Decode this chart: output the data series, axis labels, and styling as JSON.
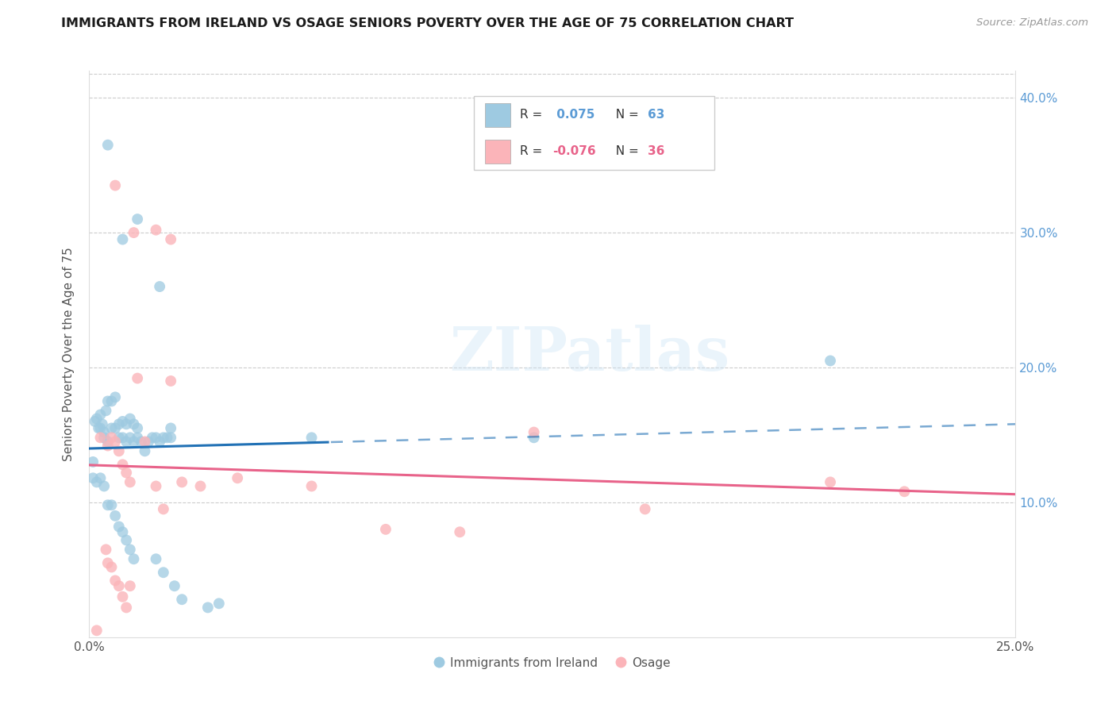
{
  "title": "IMMIGRANTS FROM IRELAND VS OSAGE SENIORS POVERTY OVER THE AGE OF 75 CORRELATION CHART",
  "source": "Source: ZipAtlas.com",
  "ylabel": "Seniors Poverty Over the Age of 75",
  "xmin": 0.0,
  "xmax": 0.25,
  "ymin": 0.0,
  "ymax": 0.42,
  "yticks": [
    0.1,
    0.2,
    0.3,
    0.4
  ],
  "ytick_labels": [
    "10.0%",
    "20.0%",
    "30.0%",
    "40.0%"
  ],
  "xticks": [
    0.0,
    0.05,
    0.1,
    0.15,
    0.2,
    0.25
  ],
  "xtick_labels": [
    "0.0%",
    "",
    "",
    "",
    "",
    "25.0%"
  ],
  "legend_label1": "Immigrants from Ireland",
  "legend_label2": "Osage",
  "blue_color": "#9ecae1",
  "pink_color": "#fbb4b9",
  "blue_line_color": "#2171b5",
  "pink_line_color": "#e8638a",
  "text_color": "#555555",
  "right_axis_color": "#5b9bd5",
  "watermark": "ZIPatlas",
  "blue_x": [
    0.005,
    0.009,
    0.013,
    0.019,
    0.001,
    0.0015,
    0.002,
    0.0025,
    0.003,
    0.003,
    0.0035,
    0.004,
    0.004,
    0.0045,
    0.005,
    0.005,
    0.006,
    0.006,
    0.007,
    0.007,
    0.008,
    0.008,
    0.009,
    0.009,
    0.01,
    0.01,
    0.011,
    0.011,
    0.012,
    0.012,
    0.013,
    0.013,
    0.014,
    0.015,
    0.016,
    0.017,
    0.018,
    0.019,
    0.02,
    0.021,
    0.001,
    0.002,
    0.003,
    0.004,
    0.005,
    0.006,
    0.007,
    0.008,
    0.009,
    0.01,
    0.011,
    0.012,
    0.018,
    0.02,
    0.023,
    0.025,
    0.032,
    0.035,
    0.06,
    0.12,
    0.2,
    0.022,
    0.022
  ],
  "blue_y": [
    0.365,
    0.295,
    0.31,
    0.26,
    0.13,
    0.16,
    0.162,
    0.155,
    0.165,
    0.155,
    0.158,
    0.152,
    0.148,
    0.168,
    0.175,
    0.145,
    0.175,
    0.155,
    0.178,
    0.155,
    0.158,
    0.148,
    0.16,
    0.148,
    0.158,
    0.145,
    0.162,
    0.148,
    0.158,
    0.145,
    0.155,
    0.148,
    0.145,
    0.138,
    0.145,
    0.148,
    0.148,
    0.145,
    0.148,
    0.148,
    0.118,
    0.115,
    0.118,
    0.112,
    0.098,
    0.098,
    0.09,
    0.082,
    0.078,
    0.072,
    0.065,
    0.058,
    0.058,
    0.048,
    0.038,
    0.028,
    0.022,
    0.025,
    0.148,
    0.148,
    0.205,
    0.155,
    0.148
  ],
  "pink_x": [
    0.007,
    0.012,
    0.018,
    0.022,
    0.003,
    0.005,
    0.006,
    0.007,
    0.008,
    0.009,
    0.01,
    0.011,
    0.013,
    0.015,
    0.018,
    0.02,
    0.025,
    0.03,
    0.04,
    0.06,
    0.08,
    0.1,
    0.12,
    0.15,
    0.2,
    0.22,
    0.0045,
    0.006,
    0.007,
    0.008,
    0.009,
    0.01,
    0.011,
    0.002,
    0.005,
    0.022
  ],
  "pink_y": [
    0.335,
    0.3,
    0.302,
    0.295,
    0.148,
    0.142,
    0.148,
    0.145,
    0.138,
    0.128,
    0.122,
    0.115,
    0.192,
    0.145,
    0.112,
    0.095,
    0.115,
    0.112,
    0.118,
    0.112,
    0.08,
    0.078,
    0.152,
    0.095,
    0.115,
    0.108,
    0.065,
    0.052,
    0.042,
    0.038,
    0.03,
    0.022,
    0.038,
    0.005,
    0.055,
    0.19
  ]
}
